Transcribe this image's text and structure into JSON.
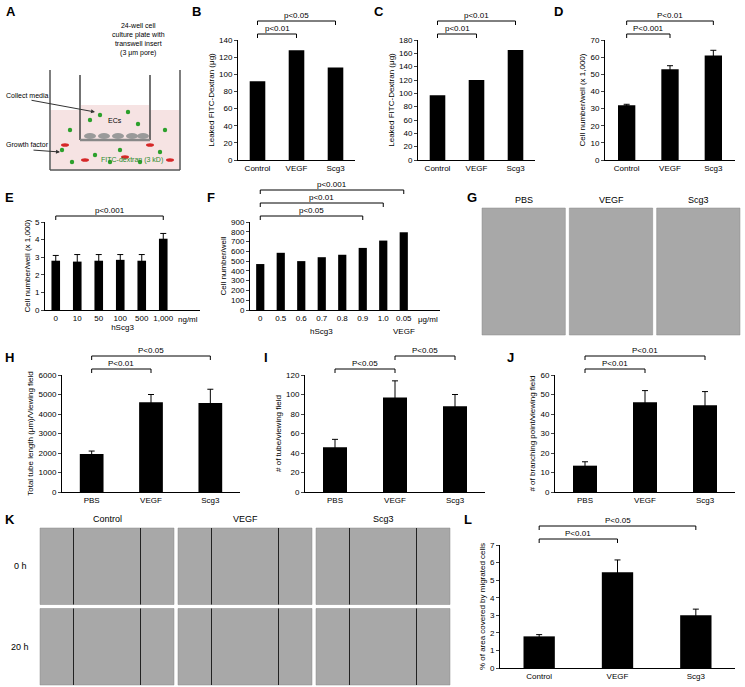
{
  "panels": [
    {
      "label": "A",
      "type": "diagram",
      "texts": {
        "plate": [
          "24-well cell",
          "culture plate with",
          "transwell insert",
          "(3 μm pore)"
        ],
        "collect": "Collect media",
        "growth": "Growth factor",
        "cells": "ECs",
        "tracer": "FITC-dextran (3 kD)"
      }
    },
    {
      "label": "G",
      "type": "micrographs",
      "columns": [
        "PBS",
        "VEGF",
        "Scg3"
      ]
    },
    {
      "label": "K",
      "type": "micrographs",
      "columns": [
        "Control",
        "VEGF",
        "Scg3"
      ],
      "rows": [
        "0 h",
        "20 h"
      ]
    }
  ],
  "chart_data": [
    {
      "label": "B",
      "type": "bar",
      "categories": [
        "Control",
        "VEGF",
        "Scg3"
      ],
      "values": [
        92,
        128,
        108
      ],
      "color": "#000000",
      "ylabel": "Leaked FITC-Dextran (μg)",
      "ylim": [
        0,
        140
      ],
      "yticks": [
        0,
        20,
        40,
        60,
        80,
        100,
        120,
        140
      ],
      "grid": false,
      "comparisons": [
        {
          "from": "Control",
          "to": "VEGF",
          "text": "p<0.01"
        },
        {
          "from": "Control",
          "to": "Scg3",
          "text": "p<0.05"
        }
      ]
    },
    {
      "label": "C",
      "type": "bar",
      "categories": [
        "Control",
        "VEGF",
        "Scg3"
      ],
      "values": [
        97,
        120,
        165
      ],
      "color": "#000000",
      "ylabel": "Leaked FITC-Dextran (μg)",
      "ylim": [
        0,
        180
      ],
      "yticks": [
        0,
        20,
        40,
        60,
        80,
        100,
        120,
        140,
        160,
        180
      ],
      "grid": false,
      "comparisons": [
        {
          "from": "Control",
          "to": "VEGF",
          "text": "p<0.01"
        },
        {
          "from": "Control",
          "to": "Scg3",
          "text": "p<0.01"
        }
      ]
    },
    {
      "label": "D",
      "type": "bar",
      "categories": [
        "Control",
        "VEGF",
        "Scg3"
      ],
      "values": [
        32,
        53,
        61
      ],
      "errors": [
        0.5,
        2,
        3
      ],
      "color": "#000000",
      "ylabel": "Cell number/well (x 1,000)",
      "ylim": [
        0,
        70
      ],
      "yticks": [
        0,
        10,
        20,
        30,
        40,
        50,
        60,
        70
      ],
      "grid": false,
      "comparisons": [
        {
          "from": "Control",
          "to": "VEGF",
          "text": "P<0.001"
        },
        {
          "from": "Control",
          "to": "Scg3",
          "text": "P<0.01"
        }
      ]
    },
    {
      "label": "E",
      "type": "bar",
      "categories": [
        "0",
        "10",
        "50",
        "100",
        "500",
        "1,000"
      ],
      "values": [
        2.8,
        2.75,
        2.8,
        2.85,
        2.8,
        4.05
      ],
      "errors": [
        0.3,
        0.4,
        0.35,
        0.3,
        0.35,
        0.3
      ],
      "color": "#000000",
      "ylabel": "Cell number/well (x 1,000)",
      "xlabel": "hScg3",
      "x_unit": "ng/ml",
      "ylim": [
        0,
        5
      ],
      "yticks": [
        0,
        1,
        2,
        3,
        4,
        5
      ],
      "grid": false,
      "comparisons": [
        {
          "from": "0",
          "to": "1,000",
          "text": "p<0.001"
        }
      ]
    },
    {
      "label": "F",
      "type": "bar",
      "categories": [
        "0",
        "0.5",
        "0.6",
        "0.7",
        "0.8",
        "0.9",
        "1.0",
        "0.05"
      ],
      "values": [
        470,
        585,
        500,
        540,
        565,
        635,
        710,
        795
      ],
      "color": "#000000",
      "ylabel": "Cell number/well",
      "x_unit": "μg/ml",
      "ylim": [
        0,
        900
      ],
      "yticks": [
        0,
        100,
        200,
        300,
        400,
        500,
        600,
        700,
        800,
        900
      ],
      "grid": false,
      "x_groups": [
        {
          "label": "hScg3",
          "members": [
            "0",
            "0.5",
            "0.6",
            "0.7",
            "0.8",
            "0.9",
            "1.0"
          ]
        },
        {
          "label": "VEGF",
          "members": [
            "0.05"
          ]
        }
      ],
      "comparisons": [
        {
          "from": "0",
          "to": "0.9",
          "text": "p<0.05"
        },
        {
          "from": "0",
          "to": "1.0",
          "text": "p<0.01"
        },
        {
          "from": "0",
          "to": "0.05",
          "text": "p<0.001"
        }
      ]
    },
    {
      "label": "H",
      "type": "bar",
      "categories": [
        "PBS",
        "VEGF",
        "Scg3"
      ],
      "values": [
        1950,
        4600,
        4570
      ],
      "errors": [
        150,
        400,
        700
      ],
      "color": "#000000",
      "ylabel": "Total tube length (μm)/Viewing field",
      "ylim": [
        0,
        6000
      ],
      "yticks": [
        0,
        1000,
        2000,
        3000,
        4000,
        5000,
        6000
      ],
      "grid": false,
      "comparisons": [
        {
          "from": "PBS",
          "to": "VEGF",
          "text": "P<0.01"
        },
        {
          "from": "PBS",
          "to": "Scg3",
          "text": "P<0.05"
        }
      ]
    },
    {
      "label": "I",
      "type": "bar",
      "categories": [
        "PBS",
        "VEGF",
        "Scg3"
      ],
      "values": [
        46,
        97,
        88
      ],
      "errors": [
        8,
        17,
        12
      ],
      "color": "#000000",
      "ylabel": "# of tube/viewing field",
      "ylim": [
        0,
        120
      ],
      "yticks": [
        0,
        20,
        40,
        60,
        80,
        100,
        120
      ],
      "grid": false,
      "comparisons": [
        {
          "from": "PBS",
          "to": "VEGF",
          "text": "P<0.05"
        },
        {
          "from": "VEGF",
          "to": "Scg3",
          "text": "P<0.05"
        }
      ]
    },
    {
      "label": "J",
      "type": "bar",
      "categories": [
        "PBS",
        "VEGF",
        "Scg3"
      ],
      "values": [
        13.5,
        46,
        44.5
      ],
      "errors": [
        2,
        6,
        7
      ],
      "color": "#000000",
      "ylabel": "# of branching point/viewing field",
      "ylim": [
        0,
        60
      ],
      "yticks": [
        0,
        10,
        20,
        30,
        40,
        50,
        60
      ],
      "grid": false,
      "comparisons": [
        {
          "from": "PBS",
          "to": "VEGF",
          "text": "P<0.01"
        },
        {
          "from": "PBS",
          "to": "Scg3",
          "text": "P<0.01"
        }
      ]
    },
    {
      "label": "L",
      "type": "bar",
      "categories": [
        "Control",
        "VEGF",
        "Scg3"
      ],
      "values": [
        1.8,
        5.45,
        3.0
      ],
      "errors": [
        0.1,
        0.7,
        0.35
      ],
      "color": "#000000",
      "ylabel": "% of area covered by migrated cells",
      "ylim": [
        0,
        7
      ],
      "yticks": [
        0,
        1,
        2,
        3,
        4,
        5,
        6,
        7
      ],
      "grid": false,
      "comparisons": [
        {
          "from": "Control",
          "to": "VEGF",
          "text": "P<0.01"
        },
        {
          "from": "Control",
          "to": "Scg3",
          "text": "P<0.05"
        }
      ]
    }
  ]
}
